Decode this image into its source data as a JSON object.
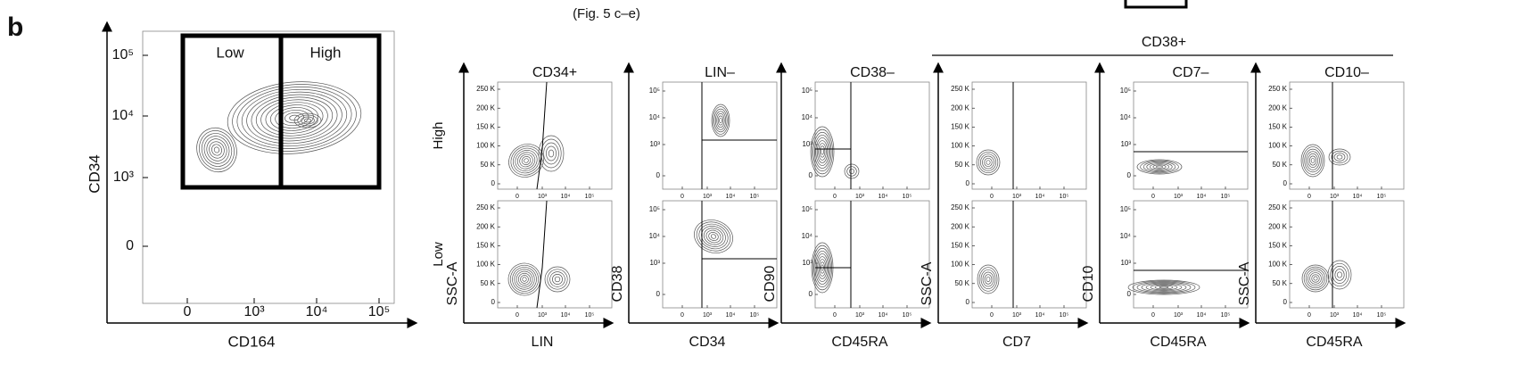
{
  "panel_label": "b",
  "top_note": "(Fig. 5 c–e)",
  "main": {
    "y_label": "CD34",
    "x_label": "CD164",
    "y_ticks": [
      "10⁵",
      "10⁴",
      "10³",
      "0"
    ],
    "x_ticks": [
      "0",
      "10³",
      "10⁴",
      "10⁵"
    ],
    "gates": [
      "Low",
      "High"
    ]
  },
  "rows": [
    "High",
    "Low"
  ],
  "group_header": "CD38+",
  "scales": {
    "linear": [
      "250 K",
      "200 K",
      "150 K",
      "100 K",
      "50 K",
      "0"
    ],
    "log": [
      "10⁵",
      "10⁴",
      "10³",
      "0"
    ],
    "x": [
      "0",
      "10³",
      "10⁴",
      "10⁵"
    ]
  },
  "panels": [
    {
      "title": "CD34+",
      "y_label": "SSC-A",
      "x_label": "LIN",
      "y_scale": "linear"
    },
    {
      "title": "LIN–",
      "y_label": "CD38",
      "x_label": "CD34",
      "y_scale": "log"
    },
    {
      "title": "CD38–",
      "y_label": "CD90",
      "x_label": "CD45RA",
      "y_scale": "log"
    },
    {
      "y_label": "SSC-A",
      "x_label": "CD7",
      "y_scale": "linear"
    },
    {
      "title": "CD7–",
      "y_label": "CD10",
      "x_label": "CD45RA",
      "y_scale": "log"
    },
    {
      "title": "CD10–",
      "y_label": "SSC-A",
      "x_label": "CD45RA",
      "y_scale": "linear"
    }
  ]
}
